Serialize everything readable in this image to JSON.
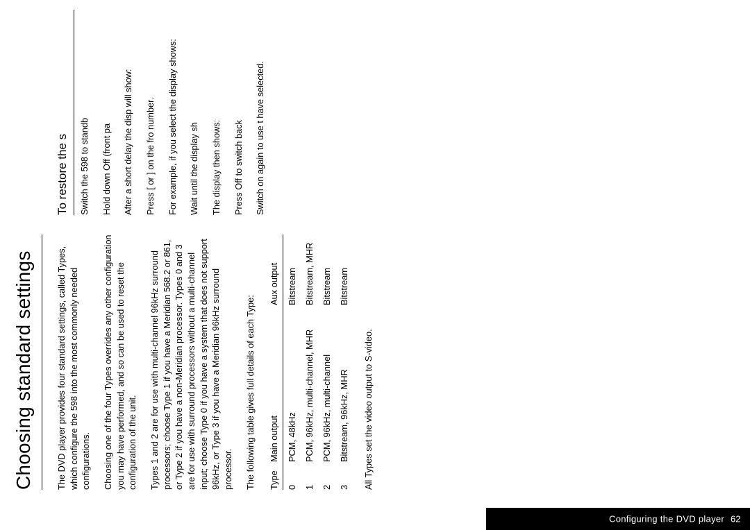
{
  "tab": {
    "page_num": "62",
    "label": "Configuring the DVD player"
  },
  "title": "Choosing standard settings",
  "left": {
    "p1": "The DVD player provides four standard settings, called Types, which configure the 598 into the most commonly needed configurations.",
    "p2": "Choosing one of the four Types overrides any other configuration you may have performed, and so can be used to reset the configuration of the unit.",
    "p3": "Types 1 and 2 are for use with multi-channel 96kHz surround processors; choose Type 1 if you have a Meridian 568.2 or 861, or Type 2 if you have a non-Meridian processor. Types 0 and 3 are for use with surround processors without a multi-channel input; choose Type 0 if you have a system that does not support 96kHz, or Type 3 if you have a Meridian 96kHz surround processor.",
    "p4": "The following table gives full details of each Type:",
    "table": {
      "head": {
        "c0": "Type",
        "c1": "Main output",
        "c2": "Aux output"
      },
      "rows": [
        {
          "c0": "0",
          "c1": "PCM, 48kHz",
          "c2": "Bitstream"
        },
        {
          "c0": "1",
          "c1": "PCM, 96kHz, multi-channel, MHR",
          "c2": "Bitstream, MHR"
        },
        {
          "c0": "2",
          "c1": "PCM, 96kHz, multi-channel",
          "c2": "Bitstream"
        },
        {
          "c0": "3",
          "c1": "Bitstream, 96kHz, MHR",
          "c2": "Bitstream"
        }
      ]
    },
    "p5": "All Types set the video output to S-video."
  },
  "right": {
    "heading": "To restore the s",
    "p1": "Switch the 598 to standb",
    "p2": "Hold down Off (front pa",
    "p3": "After a short delay the disp will show:",
    "p4": "Press [  or ]  on the fro number.",
    "p5": "For example, if you select the display shows:",
    "p6": "Wait until the display sh",
    "p7": "The display then shows:",
    "p8": "Press Off  to switch back",
    "p9": "Switch on again to use t have selected."
  }
}
